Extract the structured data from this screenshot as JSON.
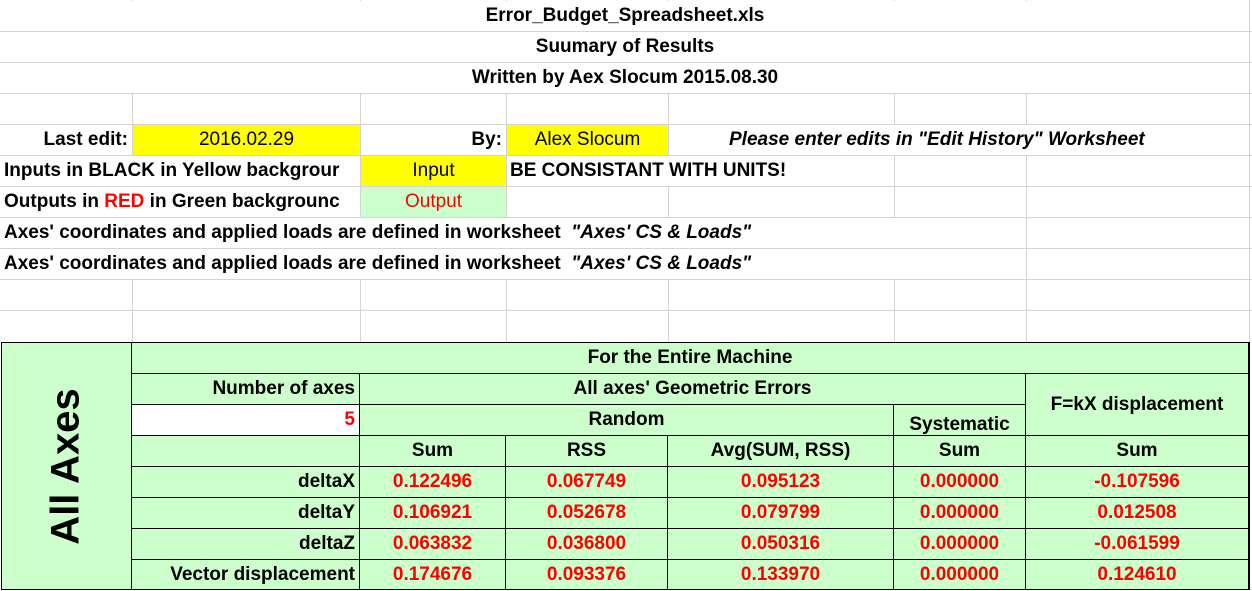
{
  "header": {
    "filename": "Error_Budget_Spreadsheet.xls",
    "subtitle": "Suumary of Results",
    "author_line": "Written by Aex Slocum 2015.08.30"
  },
  "edit_row": {
    "last_edit_label": "Last edit:",
    "last_edit_value": "2016.02.29",
    "by_label": "By:",
    "by_value": "Alex Slocum",
    "note": "Please enter edits in \"Edit History\" Worksheet"
  },
  "legend": {
    "inputs_text": "Inputs in BLACK in Yellow backgrour",
    "input_sample": "Input",
    "units_warning": "BE CONSISTANT WITH UNITS!",
    "outputs_prefix": "Outputs in ",
    "outputs_red": "RED",
    "outputs_suffix": " in Green backgrounc",
    "output_sample": "Output"
  },
  "notes": {
    "line1_text": "Axes' coordinates and applied loads are defined in worksheet  ",
    "line1_ref": "\"Axes' CS & Loads\"",
    "line2_text": "Axes' coordinates and applied loads are defined in worksheet  ",
    "line2_ref": "\"Axes' CS & Loads\""
  },
  "results": {
    "side_label": "All Axes",
    "title": "For the Entire Machine",
    "num_axes_label": "Number of axes",
    "num_axes_value": "5",
    "geometric_header": "All axes' Geometric Errors",
    "fkx_header": "F=kX displacement",
    "random_header": "Random",
    "systematic_header": "Systematic",
    "columns": [
      "Sum",
      "RSS",
      "Avg(SUM, RSS)",
      "Sum",
      "Sum"
    ],
    "rows": [
      {
        "label": "deltaX",
        "values": [
          "0.122496",
          "0.067749",
          "0.095123",
          "0.000000",
          "-0.107596"
        ]
      },
      {
        "label": "deltaY",
        "values": [
          "0.106921",
          "0.052678",
          "0.079799",
          "0.000000",
          "0.012508"
        ]
      },
      {
        "label": "deltaZ",
        "values": [
          "0.063832",
          "0.036800",
          "0.050316",
          "0.000000",
          "-0.061599"
        ]
      },
      {
        "label": "Vector displacement",
        "values": [
          "0.174676",
          "0.093376",
          "0.133970",
          "0.000000",
          "0.124610"
        ]
      }
    ]
  },
  "colors": {
    "input_bg": "#ffff00",
    "output_bg": "#ccffcc",
    "output_text": "#ff0000"
  }
}
